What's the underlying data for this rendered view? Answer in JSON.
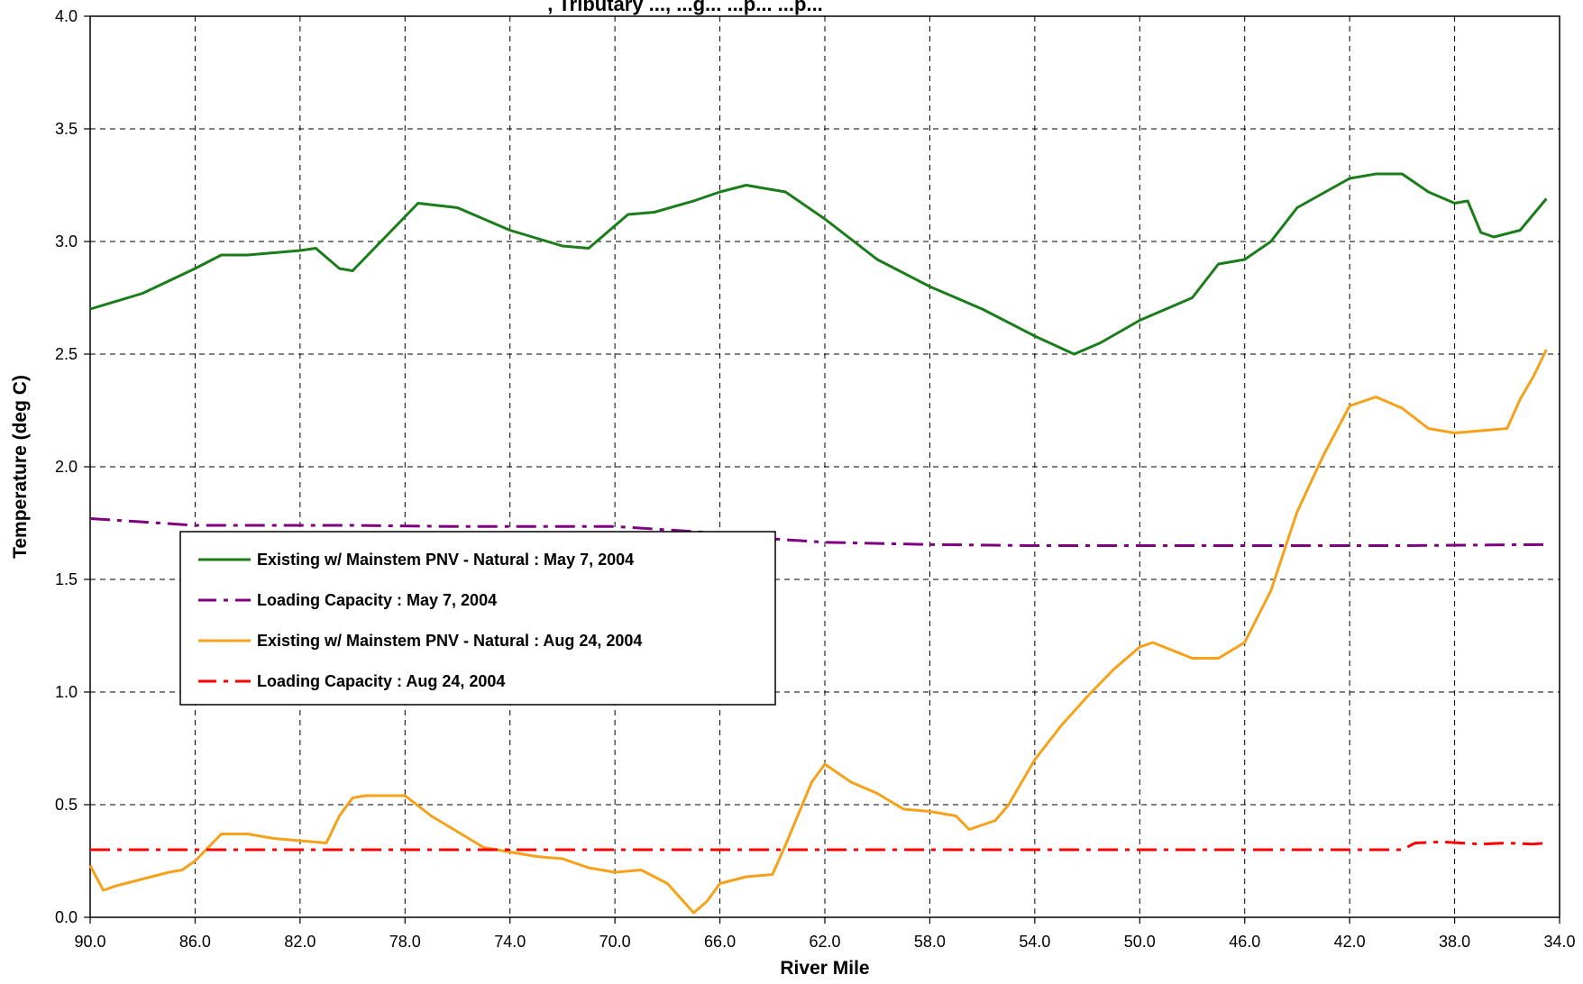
{
  "chart_data": {
    "type": "line",
    "title": ", Tributary ..., ...g... ...p... ...p...",
    "xlabel": "River Mile",
    "ylabel": "Temperature (deg C)",
    "xlim": [
      90.0,
      34.0
    ],
    "ylim": [
      0.0,
      4.0
    ],
    "x_reversed": true,
    "grid": true,
    "legend_position": "left-middle",
    "x_ticks": [
      "90.0",
      "86.0",
      "82.0",
      "78.0",
      "74.0",
      "70.0",
      "66.0",
      "62.0",
      "58.0",
      "54.0",
      "50.0",
      "46.0",
      "42.0",
      "38.0",
      "34.0"
    ],
    "y_ticks": [
      "0.0",
      "0.5",
      "1.0",
      "1.5",
      "2.0",
      "2.5",
      "3.0",
      "3.5",
      "4.0"
    ],
    "series": [
      {
        "name": "Existing w/ Mainstem PNV - Natural : May 7, 2004",
        "color": "#1a7d1a",
        "dash": "solid",
        "x": [
          90.0,
          88.0,
          86.0,
          85.0,
          84.0,
          82.0,
          81.4,
          80.5,
          80.0,
          78.5,
          77.5,
          76.0,
          74.0,
          72.0,
          71.0,
          69.5,
          68.5,
          67.0,
          66.0,
          65.0,
          63.5,
          62.0,
          60.0,
          58.0,
          56.0,
          54.0,
          52.5,
          51.5,
          50.0,
          48.0,
          47.0,
          46.0,
          45.0,
          44.0,
          42.0,
          41.0,
          40.0,
          39.0,
          38.0,
          37.5,
          37.0,
          36.5,
          35.5,
          34.5
        ],
        "values": [
          2.7,
          2.77,
          2.88,
          2.94,
          2.94,
          2.96,
          2.97,
          2.88,
          2.87,
          3.05,
          3.17,
          3.15,
          3.05,
          2.98,
          2.97,
          3.12,
          3.13,
          3.18,
          3.22,
          3.25,
          3.22,
          3.1,
          2.92,
          2.8,
          2.7,
          2.58,
          2.5,
          2.55,
          2.65,
          2.75,
          2.9,
          2.92,
          3.0,
          3.15,
          3.28,
          3.3,
          3.3,
          3.22,
          3.17,
          3.18,
          3.04,
          3.02,
          3.05,
          3.19
        ]
      },
      {
        "name": "Loading Capacity : May 7, 2004",
        "color": "#800080",
        "dash": "dash-dot",
        "x": [
          90.0,
          86.0,
          80.0,
          76.0,
          74.0,
          70.0,
          68.0,
          66.0,
          64.0,
          62.0,
          58.0,
          54.0,
          50.0,
          46.0,
          42.0,
          40.0,
          34.5
        ],
        "values": [
          1.77,
          1.74,
          1.74,
          1.735,
          1.735,
          1.735,
          1.72,
          1.705,
          1.68,
          1.665,
          1.655,
          1.65,
          1.65,
          1.65,
          1.65,
          1.65,
          1.655
        ]
      },
      {
        "name": "Existing w/ Mainstem PNV - Natural : Aug 24, 2004",
        "color": "#f5a21a",
        "dash": "solid",
        "x": [
          90.0,
          89.5,
          89.0,
          88.0,
          87.0,
          86.5,
          86.0,
          85.0,
          84.0,
          83.0,
          82.0,
          81.0,
          80.5,
          80.0,
          79.5,
          79.0,
          78.0,
          77.0,
          76.0,
          75.0,
          74.5,
          74.0,
          73.0,
          72.0,
          71.5,
          71.0,
          70.0,
          69.0,
          68.0,
          67.0,
          66.5,
          66.0,
          65.0,
          64.0,
          63.5,
          62.5,
          62.0,
          61.0,
          60.0,
          59.0,
          58.0,
          57.0,
          56.5,
          55.5,
          55.0,
          54.0,
          53.0,
          52.0,
          51.0,
          50.0,
          49.5,
          48.0,
          47.0,
          46.0,
          45.0,
          44.0,
          43.0,
          42.0,
          41.0,
          40.0,
          39.0,
          38.0,
          37.0,
          36.0,
          35.5,
          35.0,
          34.5
        ],
        "values": [
          0.23,
          0.12,
          0.14,
          0.17,
          0.2,
          0.21,
          0.25,
          0.37,
          0.37,
          0.35,
          0.34,
          0.33,
          0.45,
          0.53,
          0.54,
          0.54,
          0.54,
          0.45,
          0.38,
          0.31,
          0.3,
          0.29,
          0.27,
          0.26,
          0.24,
          0.22,
          0.2,
          0.21,
          0.15,
          0.02,
          0.07,
          0.15,
          0.18,
          0.19,
          0.32,
          0.6,
          0.68,
          0.6,
          0.55,
          0.48,
          0.47,
          0.45,
          0.39,
          0.43,
          0.5,
          0.7,
          0.85,
          0.98,
          1.1,
          1.2,
          1.22,
          1.15,
          1.15,
          1.22,
          1.45,
          1.8,
          2.05,
          2.27,
          2.31,
          2.26,
          2.17,
          2.15,
          2.16,
          2.17,
          2.3,
          2.4,
          2.52
        ]
      },
      {
        "name": "Loading Capacity : Aug 24, 2004",
        "color": "#ff0000",
        "dash": "dash-dot",
        "x": [
          90.0,
          80.0,
          70.0,
          60.0,
          50.0,
          44.0,
          41.0,
          40.0,
          39.5,
          38.5,
          37.0,
          36.0,
          35.0,
          34.5
        ],
        "values": [
          0.3,
          0.3,
          0.3,
          0.3,
          0.3,
          0.3,
          0.3,
          0.3,
          0.33,
          0.335,
          0.325,
          0.33,
          0.325,
          0.33
        ]
      }
    ]
  }
}
